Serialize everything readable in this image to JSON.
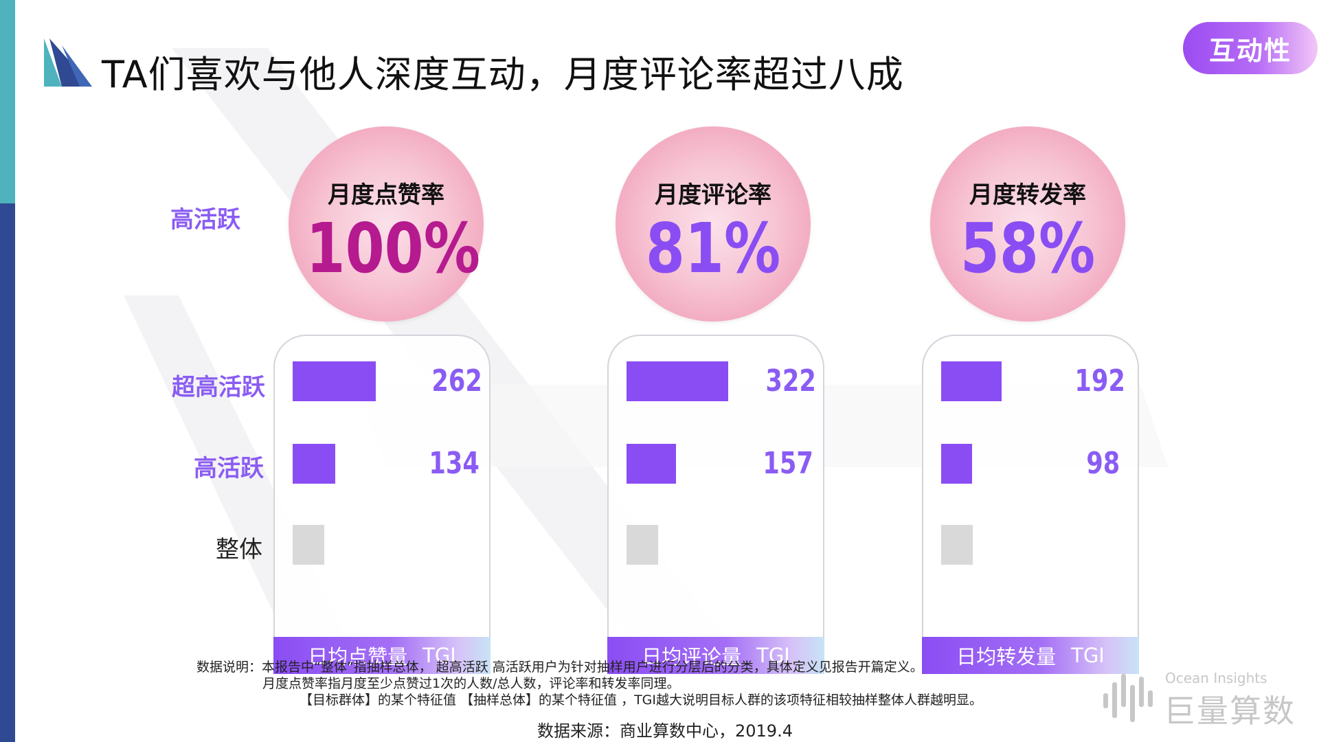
{
  "title": "TA们喜欢与他人深度互动，月度评论率超过八成",
  "section_tag": "互动性",
  "rows": {
    "circle_row_label": "高活跃",
    "super_active": "超高活跃",
    "active": "高活跃",
    "overall": "整体"
  },
  "chart_data": [
    {
      "type": "bar",
      "headline_label": "月度点赞率",
      "headline_value": "100%",
      "categories": [
        "超高活跃",
        "高活跃",
        "整体"
      ],
      "values": [
        262,
        134,
        100
      ],
      "value_labels": [
        "262",
        "134",
        ""
      ],
      "footer": {
        "metric": "日均点赞量",
        "unit": "TGI"
      }
    },
    {
      "type": "bar",
      "headline_label": "月度评论率",
      "headline_value": "81%",
      "categories": [
        "超高活跃",
        "高活跃",
        "整体"
      ],
      "values": [
        322,
        157,
        100
      ],
      "value_labels": [
        "322",
        "157",
        ""
      ],
      "footer": {
        "metric": "日均评论量",
        "unit": "TGI"
      }
    },
    {
      "type": "bar",
      "headline_label": "月度转发率",
      "headline_value": "58%",
      "categories": [
        "超高活跃",
        "高活跃",
        "整体"
      ],
      "values": [
        192,
        98,
        100
      ],
      "value_labels": [
        "192",
        "98",
        ""
      ],
      "footer": {
        "metric": "日均转发量",
        "unit": "TGI"
      }
    }
  ],
  "notes": {
    "line1": "数据说明：本报告中“整体”指抽样总体， 超高活跃 高活跃用户为针对抽样用户进行分层后的分类，具体定义见报告开篇定义。",
    "line2": "月度点赞率指月度至少点赞过1次的人数/总人数，评论率和转发率同理。",
    "line3": "【目标群体】的某个特征值 【抽样总体】的某个特征值 ，TGI越大说明目标人群的该项特征相较抽样整体人群越明显。"
  },
  "source": "数据来源：商业算数中心，2019.4",
  "brand": {
    "en": "Ocean Insights",
    "cn": "巨量算数"
  },
  "colors": {
    "accent_purple": "#8a4df3",
    "bar_purple": "#8a4df3",
    "bar_gray": "#d9d9d9",
    "value_purple": "#8a5cf3",
    "dark_value": "#b51a8f"
  }
}
